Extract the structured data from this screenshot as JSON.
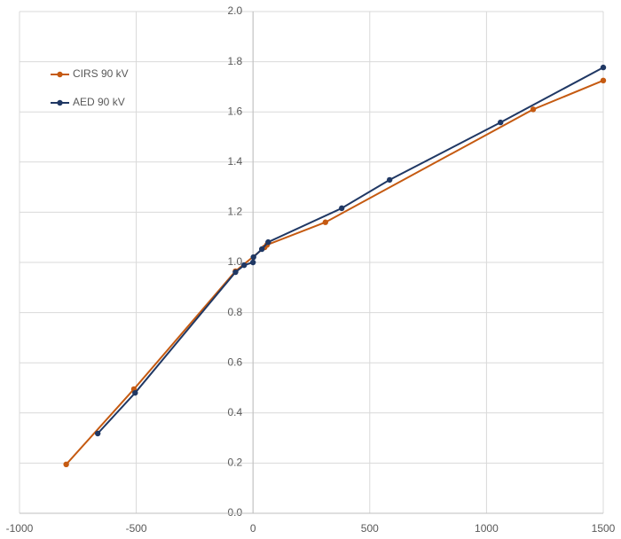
{
  "chart_data": {
    "type": "line",
    "xlim": [
      -1000,
      1500
    ],
    "xticks": [
      -1000,
      -500,
      0,
      500,
      1000,
      1500
    ],
    "ylim": [
      0,
      2
    ],
    "yticks": [
      {
        "value": 0,
        "label": "0.0"
      },
      {
        "value": 0.2,
        "label": "0.2"
      },
      {
        "value": 0.4,
        "label": "0.4"
      },
      {
        "value": 0.6,
        "label": "0.6"
      },
      {
        "value": 0.8,
        "label": "0.8"
      },
      {
        "value": 1,
        "label": "1.0"
      },
      {
        "value": 1.2,
        "label": "1.2"
      },
      {
        "value": 1.4,
        "label": "1.4"
      },
      {
        "value": 1.6,
        "label": "1.6"
      },
      {
        "value": 1.8,
        "label": "1.8"
      },
      {
        "value": 2,
        "label": "2.0"
      }
    ],
    "grid": true,
    "legend": "upper left",
    "series": [
      {
        "name": "CIRS 90 kV",
        "color": "#c55a11",
        "x": [
          -800,
          -510,
          -75,
          50,
          60,
          310,
          1200,
          1500
        ],
        "values": [
          0.195,
          0.495,
          0.965,
          1.06,
          1.07,
          1.16,
          1.61,
          1.725
        ]
      },
      {
        "name": "AED 90 kV",
        "color": "#203864",
        "x": [
          -665,
          -505,
          -75,
          -38,
          0,
          2,
          38,
          65,
          380,
          585,
          1060,
          1500
        ],
        "values": [
          0.318,
          0.48,
          0.961,
          0.989,
          1.0,
          1.021,
          1.053,
          1.081,
          1.216,
          1.329,
          1.558,
          1.777
        ]
      }
    ]
  }
}
